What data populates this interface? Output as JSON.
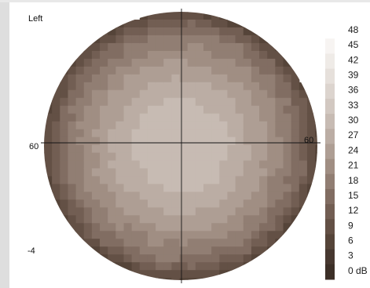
{
  "chart_data": {
    "type": "heatmap",
    "title": "",
    "eye_label": "Left",
    "meridian_labels": {
      "left": "60",
      "right": "60"
    },
    "corner_label": "-4",
    "unit": "dB",
    "legend_ticks": [
      "48",
      "45",
      "42",
      "39",
      "36",
      "33",
      "30",
      "27",
      "24",
      "21",
      "18",
      "15",
      "12",
      "9",
      "6",
      "3",
      "0 dB"
    ],
    "legend_values": [
      48,
      45,
      42,
      39,
      36,
      33,
      30,
      27,
      24,
      21,
      18,
      15,
      12,
      9,
      6,
      3,
      0
    ],
    "colormap": {
      "0": "#3c2f27",
      "3": "#473830",
      "6": "#554439",
      "9": "#635045",
      "12": "#725e53",
      "15": "#816d62",
      "18": "#917e73",
      "21": "#a08e83",
      "24": "#ae9e94",
      "27": "#bbada4",
      "30": "#c7bbb3",
      "33": "#d2c8c1",
      "36": "#dcd4ce",
      "39": "#e6e0db",
      "42": "#efebe7",
      "45": "#f7f4f2",
      "48": "#ffffff"
    },
    "field_extent_degrees": 60,
    "sensitivity_profile_db": [
      {
        "eccentricity_deg": 0,
        "value": 30
      },
      {
        "eccentricity_deg": 12,
        "value": 30
      },
      {
        "eccentricity_deg": 21,
        "value": 27
      },
      {
        "eccentricity_deg": 30,
        "value": 24
      },
      {
        "eccentricity_deg": 38,
        "value": 21
      },
      {
        "eccentricity_deg": 44,
        "value": 18
      },
      {
        "eccentricity_deg": 50,
        "value": 15
      },
      {
        "eccentricity_deg": 54,
        "value": 12
      },
      {
        "eccentricity_deg": 57,
        "value": 9
      },
      {
        "eccentricity_deg": 60,
        "value": 6
      }
    ],
    "grid": true,
    "legend_placement": "right"
  }
}
